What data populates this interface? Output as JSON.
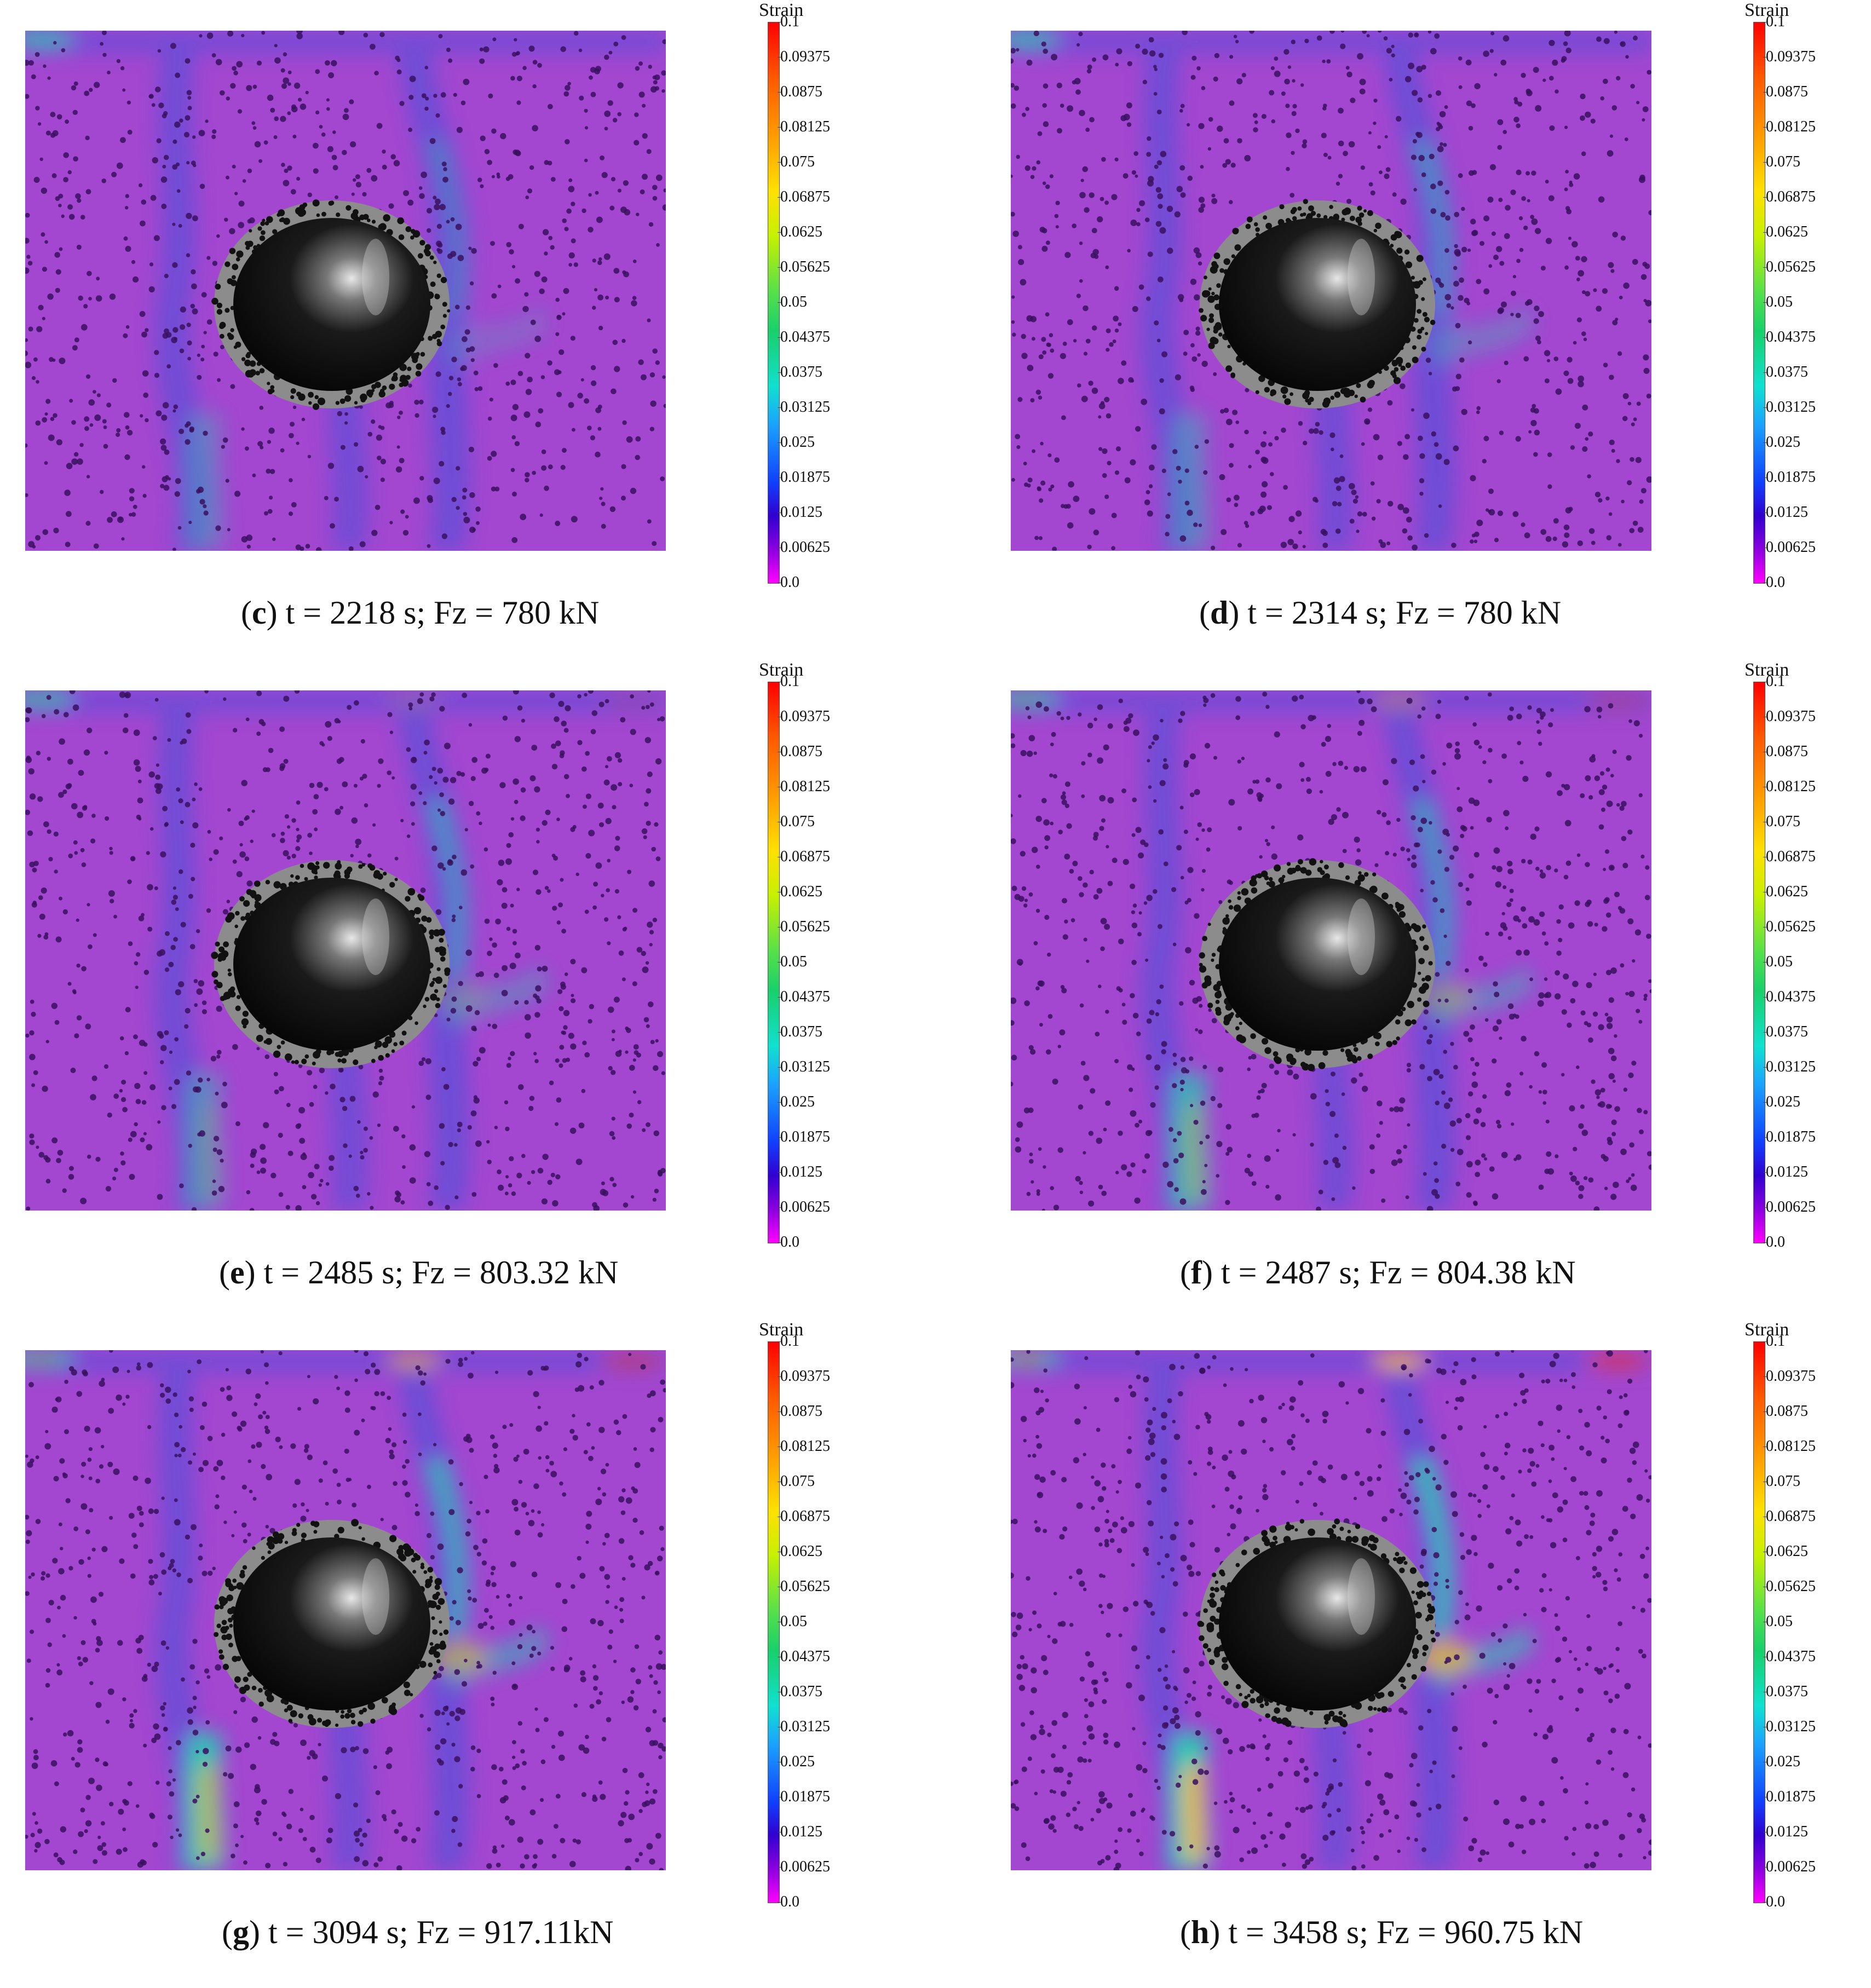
{
  "strain_scale": {
    "title": "Strain",
    "ticks": [
      "0.1",
      "0.09375",
      "0.0875",
      "0.08125",
      "0.075",
      "0.06875",
      "0.0625",
      "0.05625",
      "0.05",
      "0.04375",
      "0.0375",
      "0.03125",
      "0.025",
      "0.01875",
      "0.0125",
      "0.00625",
      "0.0"
    ]
  },
  "panels": [
    {
      "letter": "c",
      "caption": "t = 2218 s; Fz = 780 kN",
      "open": "(",
      "close": ")"
    },
    {
      "letter": "d",
      "caption": "t = 2314 s; Fz = 780 kN",
      "open": "(",
      "close": ")"
    },
    {
      "letter": "e",
      "caption": "t = 2485 s; Fz = 803.32 kN",
      "open": "(",
      "close": ")"
    },
    {
      "letter": "f",
      "caption": "t = 2487 s; Fz = 804.38 kN",
      "open": "(",
      "close": ")"
    },
    {
      "letter": "g",
      "caption": "t = 3094 s; Fz = 917.11kN",
      "open": "(",
      "close": ")"
    },
    {
      "letter": "h",
      "caption": "t = 3458 s; Fz = 960.75 kN",
      "open": "(",
      "close": ")"
    }
  ],
  "colors": {
    "background_field": "#a347d0",
    "low_strain": "#5a50d8",
    "mid_strain": "#1ad7b0",
    "high_strain": "#f0c020",
    "peak_strain": "#ff2a00"
  }
}
